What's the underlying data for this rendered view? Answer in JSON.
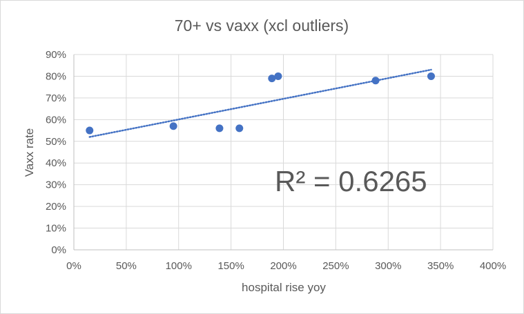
{
  "chart_data": {
    "type": "scatter",
    "title": "70+ vs vaxx (xcl outliers)",
    "xlabel": "hospital rise yoy",
    "ylabel": "Vaxx rate",
    "xlim": [
      0,
      4
    ],
    "ylim": [
      0,
      0.9
    ],
    "x_ticks": [
      0,
      0.5,
      1,
      1.5,
      2,
      2.5,
      3,
      3.5,
      4
    ],
    "x_tick_labels": [
      "0%",
      "50%",
      "100%",
      "150%",
      "200%",
      "250%",
      "300%",
      "350%",
      "400%"
    ],
    "y_ticks": [
      0,
      0.1,
      0.2,
      0.3,
      0.4,
      0.5,
      0.6,
      0.7,
      0.8,
      0.9
    ],
    "y_tick_labels": [
      "0%",
      "10%",
      "20%",
      "30%",
      "40%",
      "50%",
      "60%",
      "70%",
      "80%",
      "90%"
    ],
    "grid": true,
    "series": [
      {
        "name": "70+ vs vaxx",
        "color": "#4472c4",
        "x": [
          0.15,
          0.95,
          1.39,
          1.58,
          1.89,
          1.95,
          2.88,
          3.41
        ],
        "y": [
          0.55,
          0.57,
          0.56,
          0.56,
          0.79,
          0.8,
          0.78,
          0.8
        ]
      }
    ],
    "trendline": {
      "type": "linear",
      "style": "dotted",
      "color": "#4472c4",
      "x_range": [
        0.15,
        3.41
      ],
      "y_range": [
        0.52,
        0.83
      ],
      "label": "R² = 0.6265"
    }
  }
}
